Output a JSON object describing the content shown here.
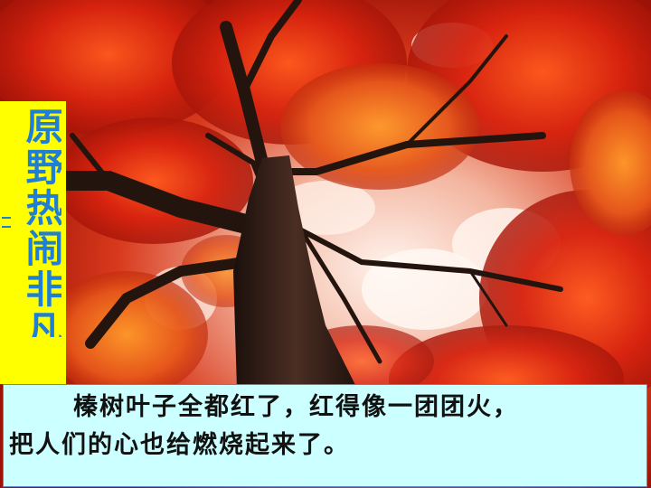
{
  "slide": {
    "vertical_title": "原野热闹非凡",
    "caption_line1": "榛树叶子全都红了，红得像一团团火，",
    "caption_line2": "把人们的心也给燃烧起来了。"
  },
  "colors": {
    "title_box": "#ffff00",
    "title_text": "#1f7fd6",
    "caption_box": "#ccffff",
    "foliage": "#d8230f"
  }
}
